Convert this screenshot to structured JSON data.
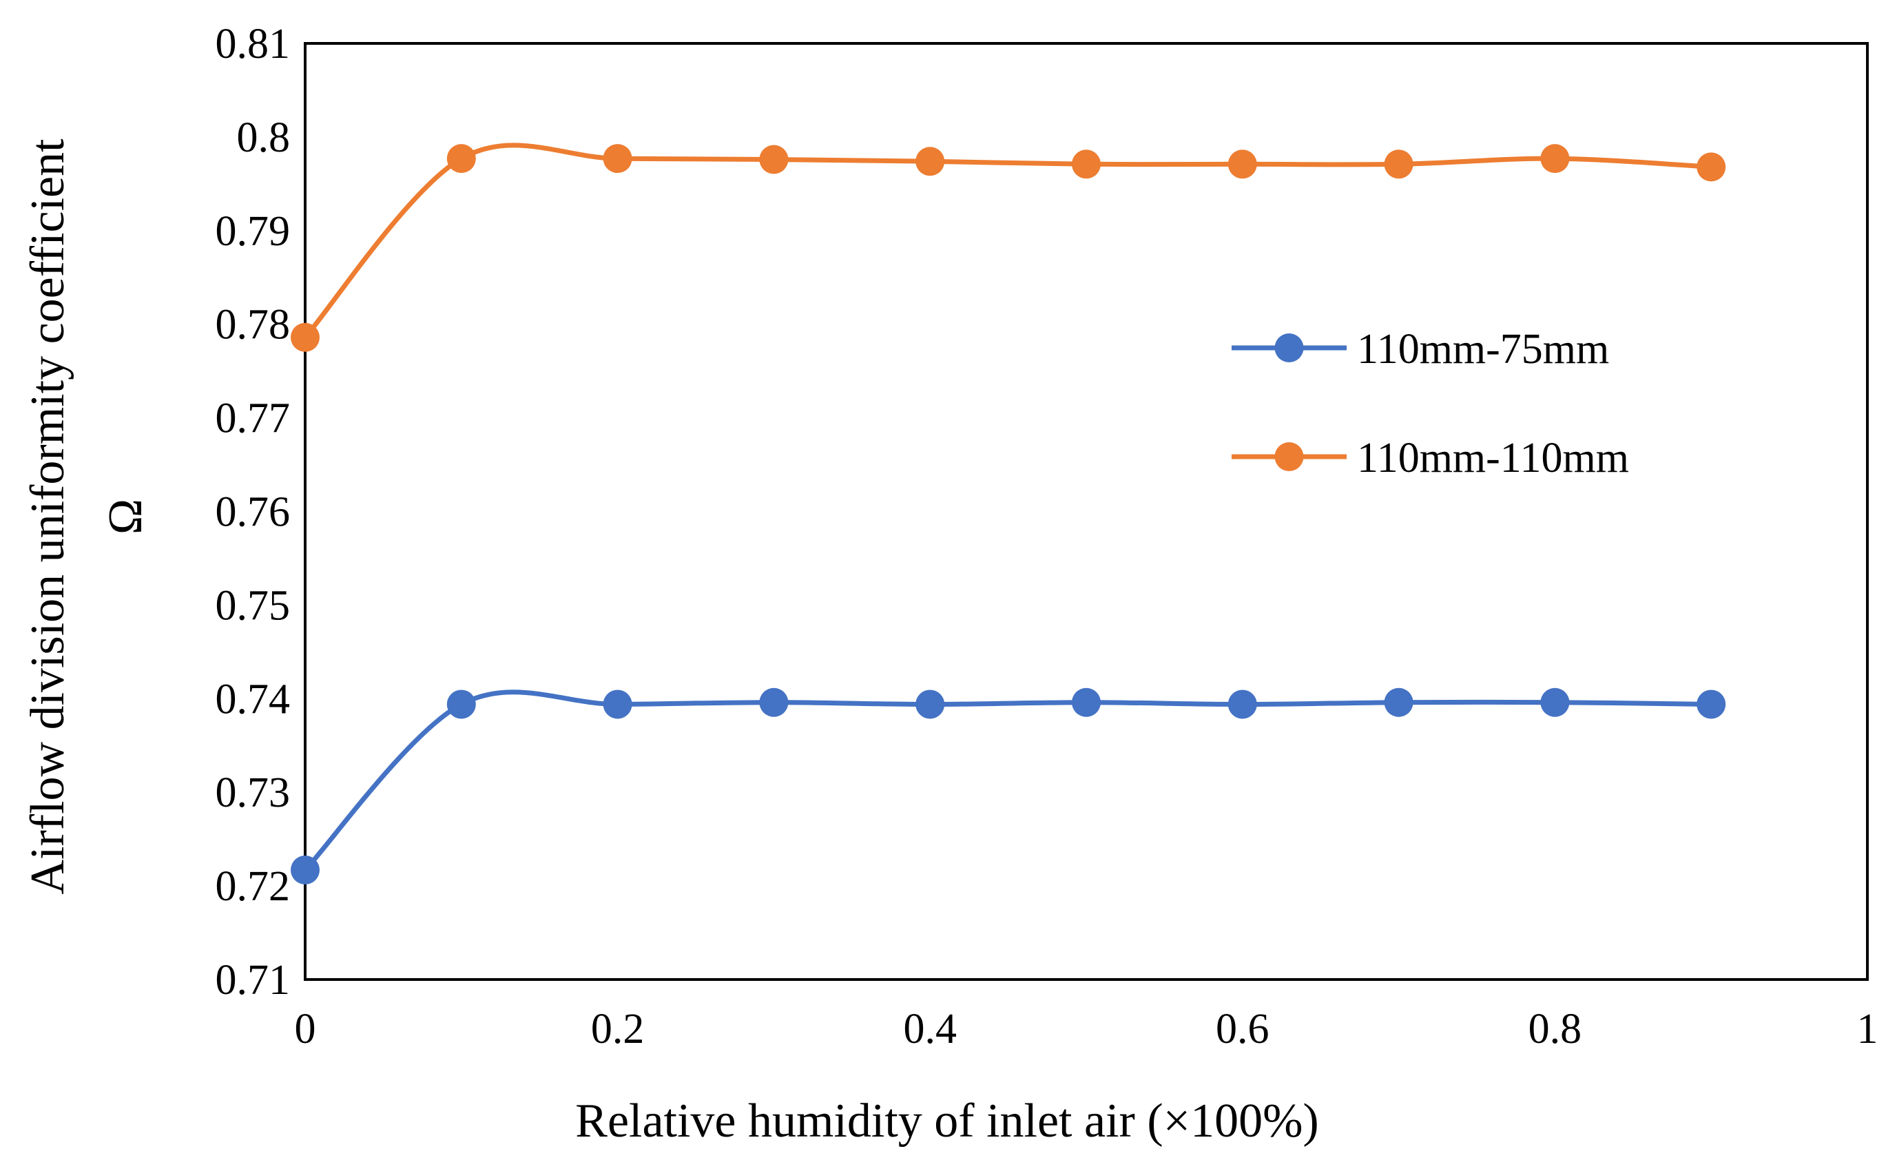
{
  "chart_data": {
    "type": "line",
    "title": "",
    "xlabel": "Relative humidity of  inlet air (×100%)",
    "ylabel": "Airflow division uniformity coefficient",
    "ylabel_symbol": "Ω",
    "xlim": [
      0,
      1
    ],
    "ylim": [
      0.71,
      0.81
    ],
    "x_ticks": [
      0,
      0.2,
      0.4,
      0.6,
      0.8,
      1
    ],
    "x_tick_labels": [
      "0",
      "0.2",
      "0.4",
      "0.6",
      "0.8",
      "1"
    ],
    "y_ticks": [
      0.71,
      0.72,
      0.73,
      0.74,
      0.75,
      0.76,
      0.77,
      0.78,
      0.79,
      0.8,
      0.81
    ],
    "y_tick_labels": [
      "0.71",
      "0.72",
      "0.73",
      "0.74",
      "0.75",
      "0.76",
      "0.77",
      "0.78",
      "0.79",
      "0.8",
      "0.81"
    ],
    "grid": false,
    "legend_position": "right-middle",
    "x": [
      0,
      0.1,
      0.2,
      0.3,
      0.4,
      0.5,
      0.6,
      0.7,
      0.8,
      0.9
    ],
    "series": [
      {
        "name": "110mm-75mm",
        "color": "#4472C4",
        "values": [
          0.7217,
          0.7394,
          0.7394,
          0.7396,
          0.7394,
          0.7396,
          0.7394,
          0.7396,
          0.7396,
          0.7394
        ]
      },
      {
        "name": "110mm-110mm",
        "color": "#ED7D31",
        "values": [
          0.7786,
          0.7977,
          0.7977,
          0.7976,
          0.7974,
          0.7971,
          0.7971,
          0.7971,
          0.7977,
          0.7968
        ]
      }
    ]
  }
}
